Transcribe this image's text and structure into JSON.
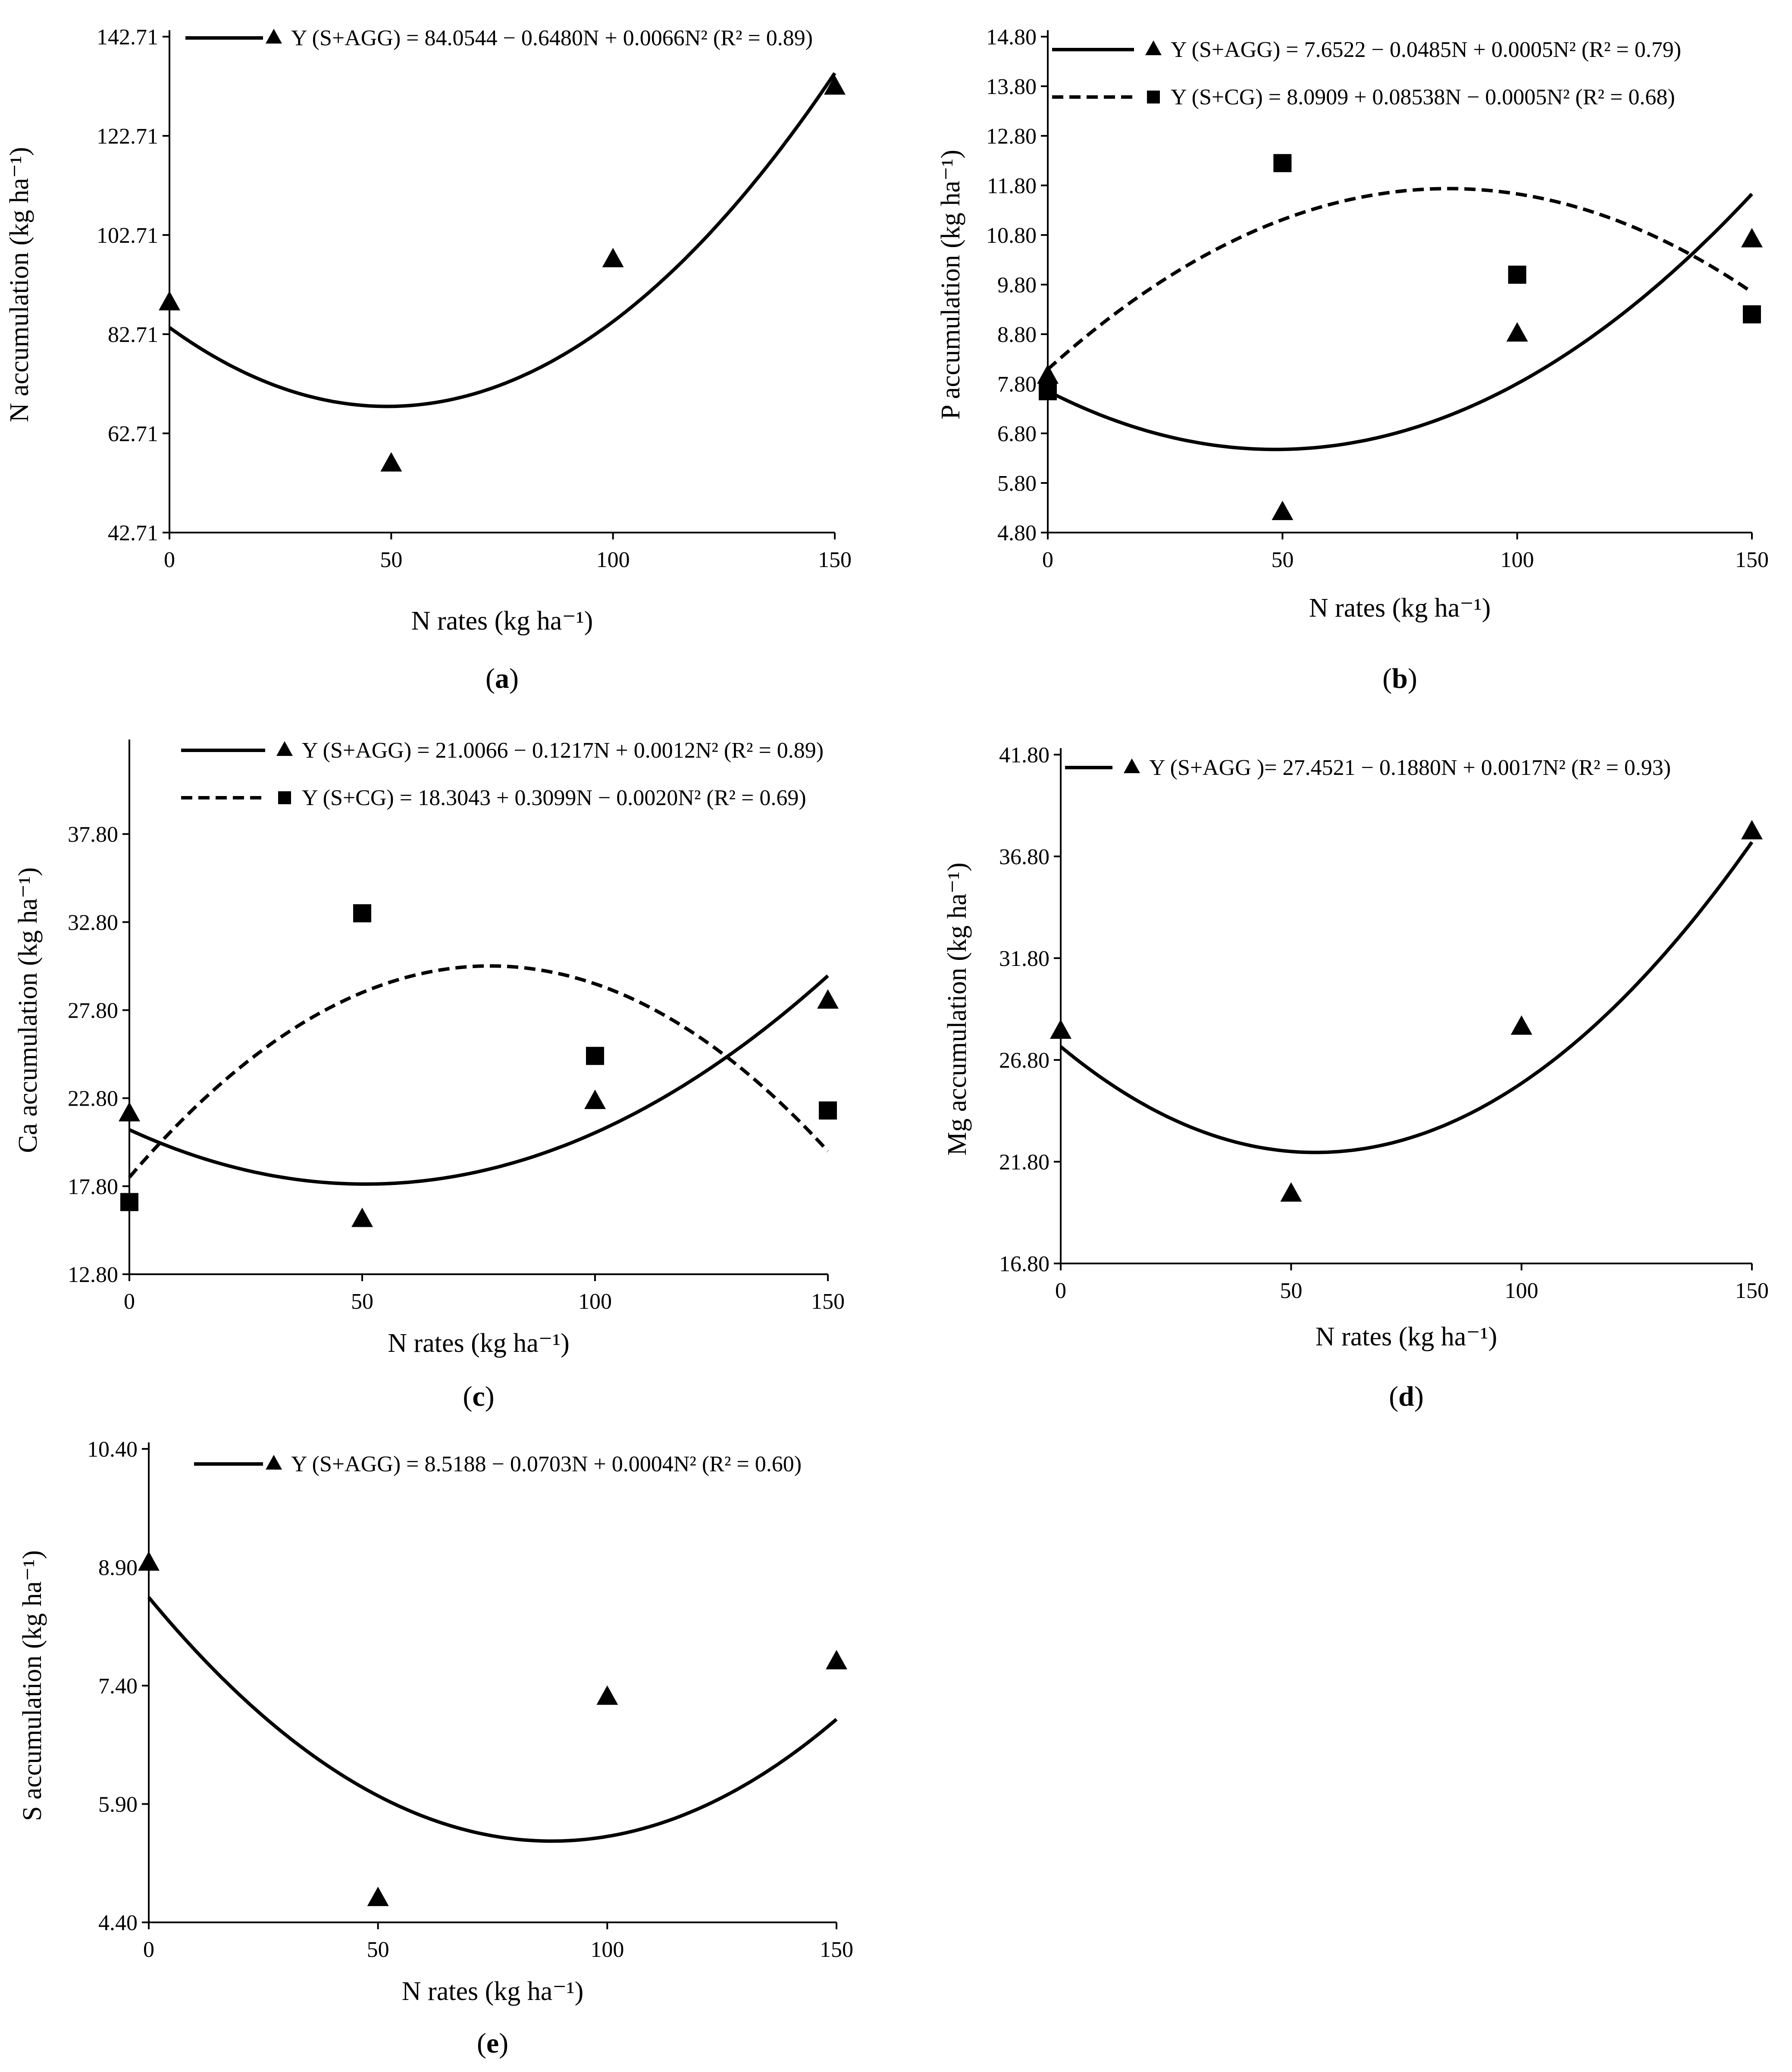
{
  "chart_data": [
    {
      "id": "a",
      "type": "scatter",
      "panel_label": "(a)",
      "panel_letter": "a",
      "xlabel": "N rates (kg ha⁻¹)",
      "ylabel": "N accumulation (kg ha⁻¹)",
      "xlim": [
        0,
        150
      ],
      "ylim": [
        42.71,
        142.71
      ],
      "x_ticks": [
        0,
        50,
        100,
        150
      ],
      "y_ticks": [
        42.71,
        62.71,
        82.71,
        102.71,
        122.71,
        142.71
      ],
      "y_tick_labels": [
        "42.71",
        "62.71",
        "82.71",
        "102.71",
        "122.71",
        "142.71"
      ],
      "series": [
        {
          "name": "S+AGG",
          "marker": "triangle",
          "line": "solid",
          "x": [
            0,
            50,
            100,
            150
          ],
          "y": [
            89.0,
            56.5,
            97.7,
            132.5
          ],
          "coef": [
            84.0544,
            -0.648,
            0.0066
          ],
          "legend": "Y (S+AGG) = 84.0544 − 0.6480N + 0.0066N²  (R²  = 0.89)"
        }
      ]
    },
    {
      "id": "b",
      "type": "scatter",
      "panel_label": "(b)",
      "panel_letter": "b",
      "xlabel": "N rates (kg ha⁻¹)",
      "ylabel": "P accumulation (kg ha⁻¹)",
      "xlim": [
        0,
        150
      ],
      "ylim": [
        4.8,
        14.8
      ],
      "x_ticks": [
        0,
        50,
        100,
        150
      ],
      "y_ticks": [
        4.8,
        5.8,
        6.8,
        7.8,
        8.8,
        9.8,
        10.8,
        11.8,
        12.8,
        13.8,
        14.8
      ],
      "y_tick_labels": [
        "4.80",
        "5.80",
        "6.80",
        "7.80",
        "8.80",
        "9.80",
        "10.80",
        "11.80",
        "12.80",
        "13.80",
        "14.80"
      ],
      "series": [
        {
          "name": "S+AGG",
          "marker": "triangle",
          "line": "solid",
          "x": [
            0,
            50,
            100,
            150
          ],
          "y": [
            7.95,
            5.2,
            8.8,
            10.7
          ],
          "coef": [
            7.6522,
            -0.0485,
            0.0005
          ],
          "legend": "Y (S+AGG) = 7.6522 − 0.0485N + 0.0005N²  (R²  = 0.79)"
        },
        {
          "name": "S+CG",
          "marker": "square",
          "line": "dashed",
          "x": [
            0,
            50,
            100,
            150
          ],
          "y": [
            7.65,
            12.25,
            10.0,
            9.2
          ],
          "coef": [
            8.0909,
            0.08538,
            -0.0005
          ],
          "legend": "Y (S+CG) = 8.0909 + 0.08538N − 0.0005N²  (R²  = 0.68)"
        }
      ]
    },
    {
      "id": "c",
      "type": "scatter",
      "panel_label": "(c)",
      "panel_letter": "c",
      "xlabel": "N rates (kg ha⁻¹)",
      "ylabel": "Ca accumulation (kg ha⁻¹)",
      "xlim": [
        0,
        150
      ],
      "ylim": [
        12.8,
        42.8
      ],
      "x_ticks": [
        0,
        50,
        100,
        150
      ],
      "y_ticks": [
        12.8,
        17.8,
        22.8,
        27.8,
        32.8,
        37.8
      ],
      "y_tick_labels": [
        "12.80",
        "17.80",
        "22.80",
        "27.80",
        "32.80",
        "37.80"
      ],
      "series": [
        {
          "name": "S+AGG",
          "marker": "triangle",
          "line": "solid",
          "x": [
            0,
            50,
            100,
            150
          ],
          "y": [
            21.9,
            15.9,
            22.6,
            28.3
          ],
          "coef": [
            21.0066,
            -0.1217,
            0.0012
          ],
          "legend": "Y (S+AGG) = 21.0066 − 0.1217N + 0.0012N²  (R²  = 0.89)"
        },
        {
          "name": "S+CG",
          "marker": "square",
          "line": "dashed",
          "x": [
            0,
            50,
            100,
            150
          ],
          "y": [
            16.9,
            33.3,
            25.2,
            22.1
          ],
          "coef": [
            18.3043,
            0.3099,
            -0.002
          ],
          "legend": "Y (S+CG) = 18.3043 + 0.3099N − 0.0020N²  (R²  = 0.69)"
        }
      ]
    },
    {
      "id": "d",
      "type": "scatter",
      "panel_label": "(d)",
      "panel_letter": "d",
      "xlabel": "N rates (kg ha⁻¹)",
      "ylabel": "Mg accumulation (kg ha⁻¹)",
      "xlim": [
        0,
        150
      ],
      "ylim": [
        16.8,
        41.8
      ],
      "x_ticks": [
        0,
        50,
        100,
        150
      ],
      "y_ticks": [
        16.8,
        21.8,
        26.8,
        31.8,
        36.8,
        41.8
      ],
      "y_tick_labels": [
        "16.80",
        "21.80",
        "26.80",
        "31.80",
        "36.80",
        "41.80"
      ],
      "series": [
        {
          "name": "S+AGG",
          "marker": "triangle",
          "line": "solid",
          "x": [
            0,
            50,
            100,
            150
          ],
          "y": [
            28.2,
            20.2,
            28.4,
            38.0
          ],
          "coef": [
            27.4521,
            -0.188,
            0.0017
          ],
          "legend": "Y (S+AGG )= 27.4521 − 0.1880N + 0.0017N²  (R²  = 0.93)"
        }
      ]
    },
    {
      "id": "e",
      "type": "scatter",
      "panel_label": "(e)",
      "panel_letter": "e",
      "xlabel": "N rates (kg ha⁻¹)",
      "ylabel": "S accumulation (kg ha⁻¹)",
      "xlim": [
        0,
        150
      ],
      "ylim": [
        4.4,
        10.4
      ],
      "x_ticks": [
        0,
        50,
        100,
        150
      ],
      "y_ticks": [
        4.4,
        5.9,
        7.4,
        8.9,
        10.4
      ],
      "y_tick_labels": [
        "4.40",
        "5.90",
        "7.40",
        "8.90",
        "10.40"
      ],
      "series": [
        {
          "name": "S+AGG",
          "marker": "triangle",
          "line": "solid",
          "x": [
            0,
            50,
            100,
            150
          ],
          "y": [
            8.95,
            4.7,
            7.25,
            7.7
          ],
          "coef": [
            8.5188,
            -0.0703,
            0.0004
          ],
          "legend": "Y (S+AGG) = 8.5188 − 0.0703N + 0.0004N²  (R²  = 0.60)"
        }
      ]
    }
  ]
}
